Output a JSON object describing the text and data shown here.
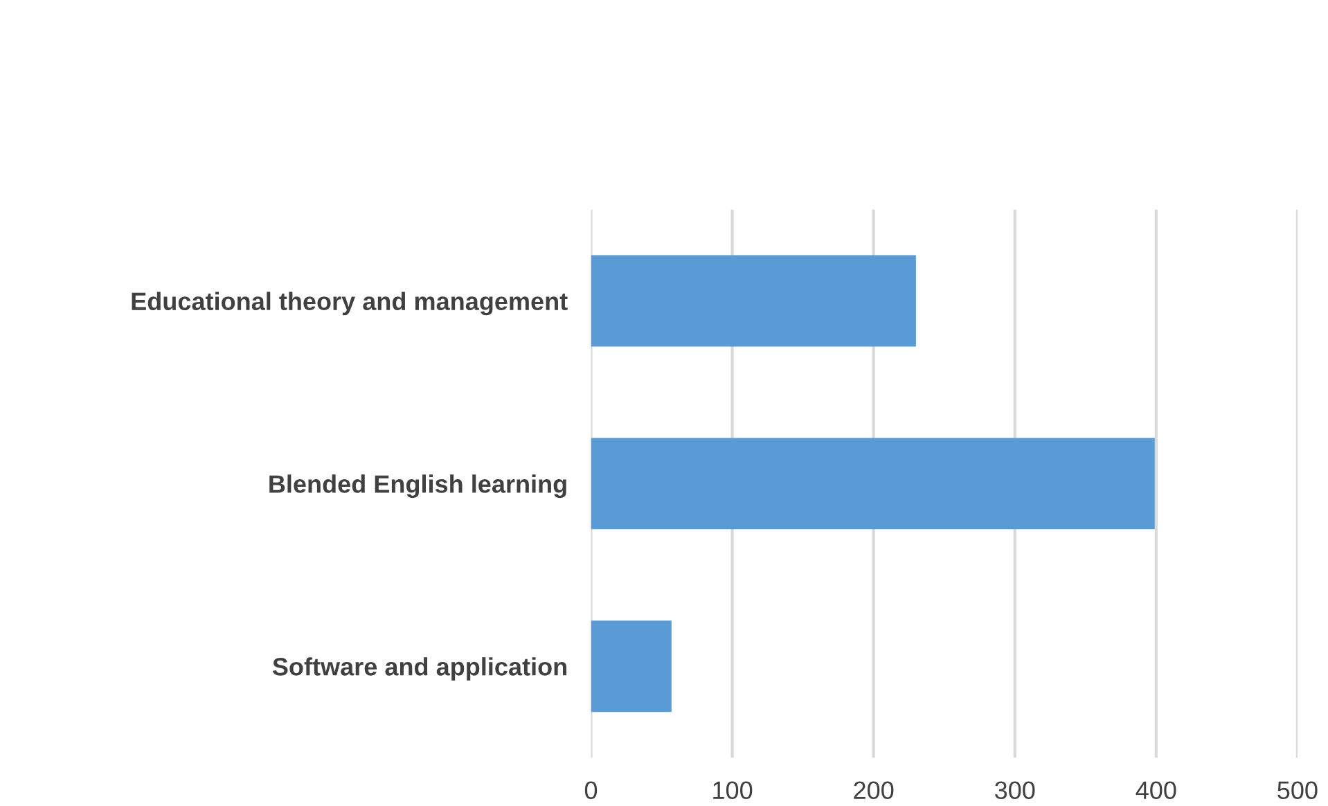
{
  "chart_data": {
    "type": "bar",
    "orientation": "horizontal",
    "categories": [
      "Educational theory and management",
      "Blended English learning",
      "Software and application"
    ],
    "values": [
      230,
      399,
      57
    ],
    "color": "#5b9bd5",
    "xlim": [
      0,
      500
    ],
    "xticks": [
      0,
      100,
      200,
      300,
      400,
      500
    ],
    "grid": "x"
  }
}
